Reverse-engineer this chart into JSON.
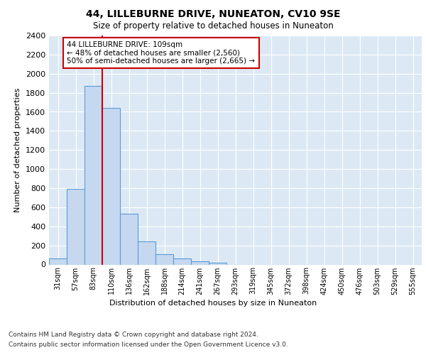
{
  "title": "44, LILLEBURNE DRIVE, NUNEATON, CV10 9SE",
  "subtitle": "Size of property relative to detached houses in Nuneaton",
  "xlabel": "Distribution of detached houses by size in Nuneaton",
  "ylabel": "Number of detached properties",
  "categories": [
    "31sqm",
    "57sqm",
    "83sqm",
    "110sqm",
    "136sqm",
    "162sqm",
    "188sqm",
    "214sqm",
    "241sqm",
    "267sqm",
    "293sqm",
    "319sqm",
    "345sqm",
    "372sqm",
    "398sqm",
    "424sqm",
    "450sqm",
    "476sqm",
    "503sqm",
    "529sqm",
    "555sqm"
  ],
  "values": [
    60,
    790,
    1870,
    1640,
    530,
    240,
    110,
    60,
    35,
    20,
    0,
    0,
    0,
    0,
    0,
    0,
    0,
    0,
    0,
    0,
    0
  ],
  "bar_color": "#c5d8f0",
  "bar_edge_color": "#5b9bd5",
  "vline_color": "#cc0000",
  "annotation_text": "44 LILLEBURNE DRIVE: 109sqm\n← 48% of detached houses are smaller (2,560)\n50% of semi-detached houses are larger (2,665) →",
  "annotation_box_color": "#cc0000",
  "ylim": [
    0,
    2400
  ],
  "yticks": [
    0,
    200,
    400,
    600,
    800,
    1000,
    1200,
    1400,
    1600,
    1800,
    2000,
    2200,
    2400
  ],
  "background_color": "#dce9f5",
  "grid_color": "#ffffff",
  "footer_line1": "Contains HM Land Registry data © Crown copyright and database right 2024.",
  "footer_line2": "Contains public sector information licensed under the Open Government Licence v3.0."
}
